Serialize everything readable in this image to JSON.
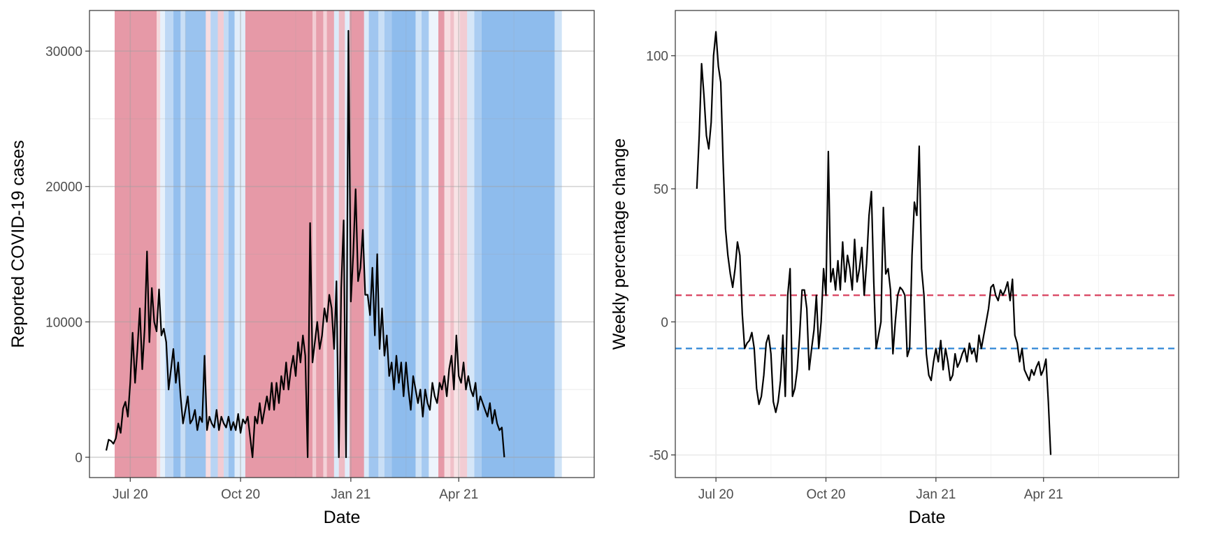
{
  "chart_data": [
    {
      "type": "line",
      "title": "",
      "xlabel": "Date",
      "ylabel": "Reported COVID-19 cases",
      "grid": true,
      "legend": "none",
      "xlim": [
        "2020-05-28",
        "2021-07-23"
      ],
      "ylim": [
        -1500,
        33000
      ],
      "xticks": [
        {
          "date": "2020-07-01",
          "label": "Jul 20"
        },
        {
          "date": "2020-10-01",
          "label": "Oct 20"
        },
        {
          "date": "2021-01-01",
          "label": "Jan 21"
        },
        {
          "date": "2021-04-01",
          "label": "Apr 21"
        }
      ],
      "yticks": [
        0,
        10000,
        20000,
        30000
      ],
      "background_bands": {
        "description": "Shaded date ranges; red = growing cases, blue = declining cases",
        "colors": {
          "red": "#e38e9d",
          "blue": "#88b8ec"
        },
        "ranges": [
          {
            "start": "2020-06-18",
            "end": "2020-07-23",
            "color": "red",
            "opacity": 0.9
          },
          {
            "start": "2020-07-23",
            "end": "2020-07-26",
            "color": "red",
            "opacity": 0.35
          },
          {
            "start": "2020-07-26",
            "end": "2020-07-30",
            "color": "blue",
            "opacity": 0.2
          },
          {
            "start": "2020-07-30",
            "end": "2020-08-06",
            "color": "blue",
            "opacity": 0.55
          },
          {
            "start": "2020-08-06",
            "end": "2020-08-12",
            "color": "blue",
            "opacity": 0.9
          },
          {
            "start": "2020-08-12",
            "end": "2020-08-16",
            "color": "blue",
            "opacity": 0.45
          },
          {
            "start": "2020-08-16",
            "end": "2020-09-02",
            "color": "blue",
            "opacity": 0.85
          },
          {
            "start": "2020-09-02",
            "end": "2020-09-06",
            "color": "red",
            "opacity": 0.3
          },
          {
            "start": "2020-09-06",
            "end": "2020-09-12",
            "color": "blue",
            "opacity": 0.6
          },
          {
            "start": "2020-09-12",
            "end": "2020-09-17",
            "color": "red",
            "opacity": 0.45
          },
          {
            "start": "2020-09-17",
            "end": "2020-09-21",
            "color": "blue",
            "opacity": 0.5
          },
          {
            "start": "2020-09-21",
            "end": "2020-09-26",
            "color": "blue",
            "opacity": 0.85
          },
          {
            "start": "2020-09-26",
            "end": "2020-10-05",
            "color": "blue",
            "opacity": 0.25
          },
          {
            "start": "2020-10-05",
            "end": "2020-11-30",
            "color": "red",
            "opacity": 0.9
          },
          {
            "start": "2020-11-30",
            "end": "2020-12-03",
            "color": "red",
            "opacity": 0.45
          },
          {
            "start": "2020-12-03",
            "end": "2020-12-09",
            "color": "red",
            "opacity": 0.85
          },
          {
            "start": "2020-12-09",
            "end": "2020-12-12",
            "color": "red",
            "opacity": 0.4
          },
          {
            "start": "2020-12-12",
            "end": "2020-12-18",
            "color": "red",
            "opacity": 0.8
          },
          {
            "start": "2020-12-18",
            "end": "2020-12-22",
            "color": "blue",
            "opacity": 0.3
          },
          {
            "start": "2020-12-22",
            "end": "2020-12-27",
            "color": "red",
            "opacity": 0.6
          },
          {
            "start": "2020-12-27",
            "end": "2020-12-31",
            "color": "blue",
            "opacity": 0.25
          },
          {
            "start": "2020-12-31",
            "end": "2021-01-12",
            "color": "red",
            "opacity": 0.9
          },
          {
            "start": "2021-01-12",
            "end": "2021-01-16",
            "color": "blue",
            "opacity": 0.3
          },
          {
            "start": "2021-01-16",
            "end": "2021-01-24",
            "color": "blue",
            "opacity": 0.8
          },
          {
            "start": "2021-01-24",
            "end": "2021-01-29",
            "color": "blue",
            "opacity": 0.45
          },
          {
            "start": "2021-01-29",
            "end": "2021-02-04",
            "color": "blue",
            "opacity": 0.75
          },
          {
            "start": "2021-02-04",
            "end": "2021-02-24",
            "color": "blue",
            "opacity": 0.95
          },
          {
            "start": "2021-02-24",
            "end": "2021-03-01",
            "color": "blue",
            "opacity": 0.4
          },
          {
            "start": "2021-03-01",
            "end": "2021-03-07",
            "color": "blue",
            "opacity": 0.75
          },
          {
            "start": "2021-03-07",
            "end": "2021-03-15",
            "color": "blue",
            "opacity": 0.15
          },
          {
            "start": "2021-03-15",
            "end": "2021-03-20",
            "color": "red",
            "opacity": 0.9
          },
          {
            "start": "2021-03-20",
            "end": "2021-03-25",
            "color": "red",
            "opacity": 0.3
          },
          {
            "start": "2021-03-25",
            "end": "2021-03-28",
            "color": "red",
            "opacity": 0.55
          },
          {
            "start": "2021-03-28",
            "end": "2021-04-02",
            "color": "red",
            "opacity": 0.25
          },
          {
            "start": "2021-04-02",
            "end": "2021-04-08",
            "color": "red",
            "opacity": 0.45
          },
          {
            "start": "2021-04-08",
            "end": "2021-04-14",
            "color": "blue",
            "opacity": 0.35
          },
          {
            "start": "2021-04-14",
            "end": "2021-04-20",
            "color": "blue",
            "opacity": 0.7
          },
          {
            "start": "2021-04-20",
            "end": "2021-06-20",
            "color": "blue",
            "opacity": 0.95
          },
          {
            "start": "2021-06-20",
            "end": "2021-06-26",
            "color": "blue",
            "opacity": 0.4
          }
        ]
      },
      "series": [
        {
          "color": "#000000",
          "x_start": "2020-06-11",
          "x_step_days": 2,
          "values": [
            500,
            1300,
            1200,
            1000,
            1400,
            2500,
            1800,
            3600,
            4100,
            3000,
            5500,
            9200,
            5500,
            8000,
            11000,
            6500,
            9500,
            15200,
            8500,
            12500,
            10000,
            9300,
            12400,
            9000,
            9500,
            8500,
            5000,
            6500,
            8000,
            5500,
            7000,
            4500,
            2500,
            3500,
            4500,
            2500,
            2800,
            3500,
            2000,
            3000,
            2600,
            7500,
            2000,
            3000,
            2500,
            2200,
            3500,
            2000,
            3000,
            2500,
            2200,
            3000,
            2000,
            2600,
            2000,
            3200,
            1800,
            2800,
            2500,
            3000,
            1500,
            0,
            3000,
            2500,
            4000,
            2500,
            3500,
            4500,
            3500,
            5500,
            3500,
            5500,
            4000,
            6000,
            5000,
            7000,
            5000,
            6500,
            7500,
            6000,
            8500,
            7000,
            9000,
            7500,
            0,
            17300,
            7000,
            8500,
            10000,
            8000,
            9000,
            11000,
            10000,
            12000,
            11000,
            8000,
            13000,
            0,
            12500,
            17500,
            0,
            31500,
            11500,
            15000,
            19800,
            13000,
            14000,
            16800,
            12000,
            12000,
            10500,
            14000,
            9000,
            15000,
            8000,
            11000,
            7500,
            9000,
            6000,
            7000,
            5000,
            7500,
            5500,
            7000,
            4500,
            7000,
            5000,
            3500,
            6000,
            5000,
            4000,
            5000,
            3000,
            5000,
            4000,
            3500,
            5500,
            4500,
            4000,
            5500,
            5000,
            6000,
            4500,
            6500,
            7500,
            5000,
            9000,
            6000,
            5500,
            7000,
            5000,
            6000,
            5000,
            4500,
            5500,
            3500,
            4500,
            4000,
            3500,
            3000,
            4000,
            2500,
            3500,
            2500,
            2000,
            2200,
            0
          ]
        }
      ]
    },
    {
      "type": "line",
      "title": "",
      "xlabel": "Date",
      "ylabel": "Weekly percentage change",
      "grid": true,
      "legend": "none",
      "xlim": [
        "2020-05-28",
        "2021-07-23"
      ],
      "ylim": [
        -58.5,
        117
      ],
      "xticks": [
        {
          "date": "2020-07-01",
          "label": "Jul 20"
        },
        {
          "date": "2020-10-01",
          "label": "Oct 20"
        },
        {
          "date": "2021-01-01",
          "label": "Jan 21"
        },
        {
          "date": "2021-04-01",
          "label": "Apr 21"
        }
      ],
      "yticks": [
        -50,
        0,
        50,
        100
      ],
      "reference_lines": [
        {
          "y": 10,
          "color": "#d9405e",
          "style": "dashed"
        },
        {
          "y": -10,
          "color": "#2f86d6",
          "style": "dashed"
        }
      ],
      "series": [
        {
          "color": "#000000",
          "x_start": "2020-06-15",
          "x_step_days": 2,
          "values": [
            50,
            70,
            97,
            85,
            70,
            65,
            75,
            100,
            109,
            96,
            90,
            60,
            35,
            25,
            18,
            13,
            20,
            30,
            25,
            3,
            -10,
            -8,
            -7,
            -4,
            -10,
            -25,
            -31,
            -28,
            -20,
            -8,
            -5,
            -12,
            -30,
            -34,
            -30,
            -22,
            -5,
            -28,
            10,
            20,
            -28,
            -25,
            -18,
            -5,
            12,
            12,
            5,
            -18,
            -10,
            -3,
            10,
            -10,
            0,
            20,
            10,
            64,
            15,
            20,
            12,
            23,
            12,
            30,
            15,
            25,
            20,
            12,
            31,
            15,
            20,
            28,
            10,
            22,
            40,
            49,
            15,
            -10,
            -5,
            0,
            43,
            18,
            20,
            12,
            -12,
            0,
            10,
            13,
            12,
            10,
            -13,
            -10,
            25,
            45,
            40,
            66,
            20,
            10,
            -12,
            -20,
            -22,
            -15,
            -10,
            -15,
            -7,
            -18,
            -10,
            -15,
            -22,
            -20,
            -12,
            -17,
            -15,
            -12,
            -10,
            -15,
            -8,
            -12,
            -10,
            -15,
            -5,
            -10,
            -5,
            0,
            5,
            13,
            14,
            10,
            8,
            12,
            10,
            12,
            15,
            8,
            16,
            -5,
            -8,
            -15,
            -10,
            -18,
            -20,
            -22,
            -18,
            -20,
            -17,
            -15,
            -20,
            -18,
            -14,
            -30,
            -50
          ]
        }
      ]
    }
  ]
}
